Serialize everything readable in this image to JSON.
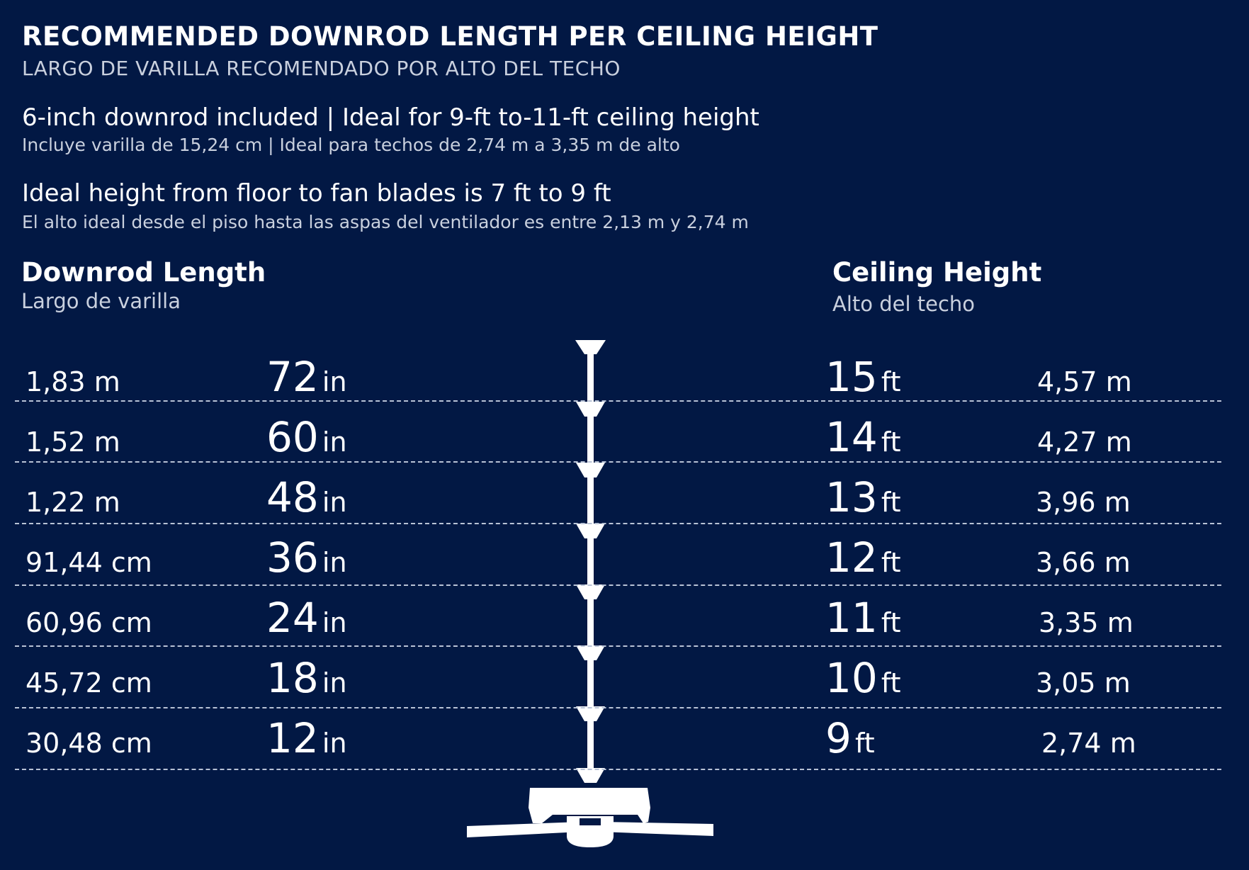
{
  "header": {
    "title": "RECOMMENDED DOWNROD LENGTH PER CEILING HEIGHT",
    "subtitle": "LARGO DE VARILLA RECOMENDADO POR ALTO DEL TECHO"
  },
  "notes": {
    "included": "6-inch downrod included | Ideal for 9-ft to-11-ft ceiling height",
    "included_es": "Incluye varilla de 15,24 cm | Ideal para techos de 2,74 m a 3,35 m de alto",
    "height": "Ideal height from floor to fan blades is 7 ft to 9 ft",
    "height_es": "El alto ideal desde el piso hasta las aspas del ventilador es entre 2,13 m y 2,74 m"
  },
  "columns": {
    "downrod": {
      "label": "Downrod Length",
      "label_es": "Largo de varilla"
    },
    "ceiling": {
      "label": "Ceiling Height",
      "label_es": "Alto del techo"
    }
  },
  "rows": [
    {
      "downrod_metric": "1,83 m",
      "downrod_in": "72",
      "downrod_unit": "in",
      "ceiling_ft": "15",
      "ceiling_unit": "ft",
      "ceiling_metric": "4,57 m"
    },
    {
      "downrod_metric": "1,52 m",
      "downrod_in": "60",
      "downrod_unit": "in",
      "ceiling_ft": "14",
      "ceiling_unit": "ft",
      "ceiling_metric": "4,27 m"
    },
    {
      "downrod_metric": "1,22 m",
      "downrod_in": "48",
      "downrod_unit": "in",
      "ceiling_ft": "13",
      "ceiling_unit": "ft",
      "ceiling_metric": "3,96 m"
    },
    {
      "downrod_metric": "91,44 cm",
      "downrod_in": "36",
      "downrod_unit": "in",
      "ceiling_ft": "12",
      "ceiling_unit": "ft",
      "ceiling_metric": "3,66 m"
    },
    {
      "downrod_metric": "60,96 cm",
      "downrod_in": "24",
      "downrod_unit": "in",
      "ceiling_ft": "11",
      "ceiling_unit": "ft",
      "ceiling_metric": "3,35 m"
    },
    {
      "downrod_metric": "45,72 cm",
      "downrod_in": "18",
      "downrod_unit": "in",
      "ceiling_ft": "10",
      "ceiling_unit": "ft",
      "ceiling_metric": "3,05 m"
    },
    {
      "downrod_metric": "30,48 cm",
      "downrod_in": "12",
      "downrod_unit": "in",
      "ceiling_ft": "9",
      "ceiling_unit": "ft",
      "ceiling_metric": "2,74 m"
    }
  ],
  "colors": {
    "background": "#021844",
    "text": "#ffffff",
    "secondary_text": "#c9d0de",
    "divider": "#b9c3d6"
  },
  "icons": [
    "ceiling-fan-icon",
    "downrod-icon",
    "canopy-icon"
  ]
}
